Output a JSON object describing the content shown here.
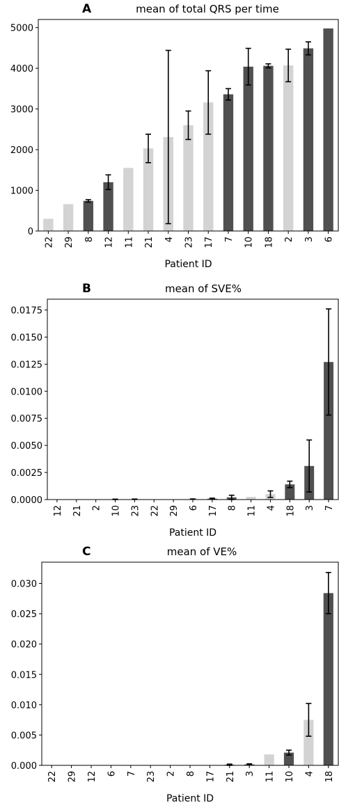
{
  "colors": {
    "dark": "#505050",
    "light": "#d3d3d3",
    "err": "#000000"
  },
  "chart_data": [
    {
      "type": "bar",
      "panel_letter": "A",
      "title": "mean of total QRS per time",
      "xlabel": "Patient ID",
      "ylabel": "",
      "ylim": [
        0,
        5200
      ],
      "yticks": [
        0,
        1000,
        2000,
        3000,
        4000,
        5000
      ],
      "ytick_labels": [
        "0",
        "1000",
        "2000",
        "3000",
        "4000",
        "5000"
      ],
      "categories": [
        "22",
        "29",
        "8",
        "12",
        "11",
        "21",
        "4",
        "23",
        "17",
        "7",
        "10",
        "18",
        "2",
        "3",
        "6"
      ],
      "values": [
        300,
        660,
        740,
        1200,
        1550,
        2030,
        2310,
        2600,
        3160,
        3360,
        4040,
        4060,
        4070,
        4490,
        4980
      ],
      "error": [
        null,
        null,
        30,
        180,
        null,
        350,
        2130,
        350,
        780,
        140,
        450,
        50,
        400,
        160,
        null
      ],
      "shade": [
        "light",
        "light",
        "dark",
        "dark",
        "light",
        "light",
        "light",
        "light",
        "light",
        "dark",
        "dark",
        "dark",
        "light",
        "dark",
        "dark"
      ],
      "grid": false
    },
    {
      "type": "bar",
      "panel_letter": "B",
      "title": "mean of SVE%",
      "xlabel": "Patient ID",
      "ylabel": "",
      "ylim": [
        0,
        0.0185
      ],
      "yticks": [
        0,
        0.0025,
        0.005,
        0.0075,
        0.01,
        0.0125,
        0.015,
        0.0175
      ],
      "ytick_labels": [
        "0.0000",
        "0.0025",
        "0.0050",
        "0.0075",
        "0.0100",
        "0.0125",
        "0.0150",
        "0.0175"
      ],
      "categories": [
        "12",
        "21",
        "2",
        "10",
        "23",
        "22",
        "29",
        "6",
        "17",
        "8",
        "11",
        "4",
        "18",
        "3",
        "7"
      ],
      "values": [
        0,
        0,
        0,
        2e-05,
        3e-05,
        0,
        0,
        4e-05,
        8e-05,
        0.0002,
        0.00025,
        0.0005,
        0.0014,
        0.0031,
        0.0127
      ],
      "error": [
        null,
        null,
        null,
        2e-05,
        2e-05,
        null,
        null,
        2e-05,
        5e-05,
        0.0002,
        null,
        0.0003,
        0.0003,
        0.0024,
        0.0049
      ],
      "shade": [
        "dark",
        "dark",
        "light",
        "dark",
        "dark",
        "dark",
        "light",
        "dark",
        "dark",
        "dark",
        "light",
        "light",
        "dark",
        "dark",
        "dark"
      ],
      "grid": false
    },
    {
      "type": "bar",
      "panel_letter": "C",
      "title": "mean of VE%",
      "xlabel": "Patient ID",
      "ylabel": "",
      "ylim": [
        0,
        0.0335
      ],
      "yticks": [
        0,
        0.005,
        0.01,
        0.015,
        0.02,
        0.025,
        0.03
      ],
      "ytick_labels": [
        "0.000",
        "0.005",
        "0.010",
        "0.015",
        "0.020",
        "0.025",
        "0.030"
      ],
      "categories": [
        "22",
        "29",
        "12",
        "6",
        "7",
        "23",
        "2",
        "8",
        "17",
        "21",
        "3",
        "11",
        "10",
        "4",
        "18"
      ],
      "values": [
        0,
        0,
        0,
        0,
        0,
        0,
        0,
        0,
        0,
        0.0001,
        0.00015,
        0.0018,
        0.0021,
        0.0075,
        0.0284
      ],
      "error": [
        null,
        null,
        null,
        null,
        null,
        null,
        null,
        null,
        null,
        0.0001,
        0.0001,
        null,
        0.0004,
        0.0027,
        0.0034
      ],
      "shade": [
        "dark",
        "dark",
        "dark",
        "dark",
        "dark",
        "dark",
        "light",
        "dark",
        "dark",
        "dark",
        "dark",
        "light",
        "dark",
        "light",
        "dark"
      ],
      "grid": false
    }
  ]
}
